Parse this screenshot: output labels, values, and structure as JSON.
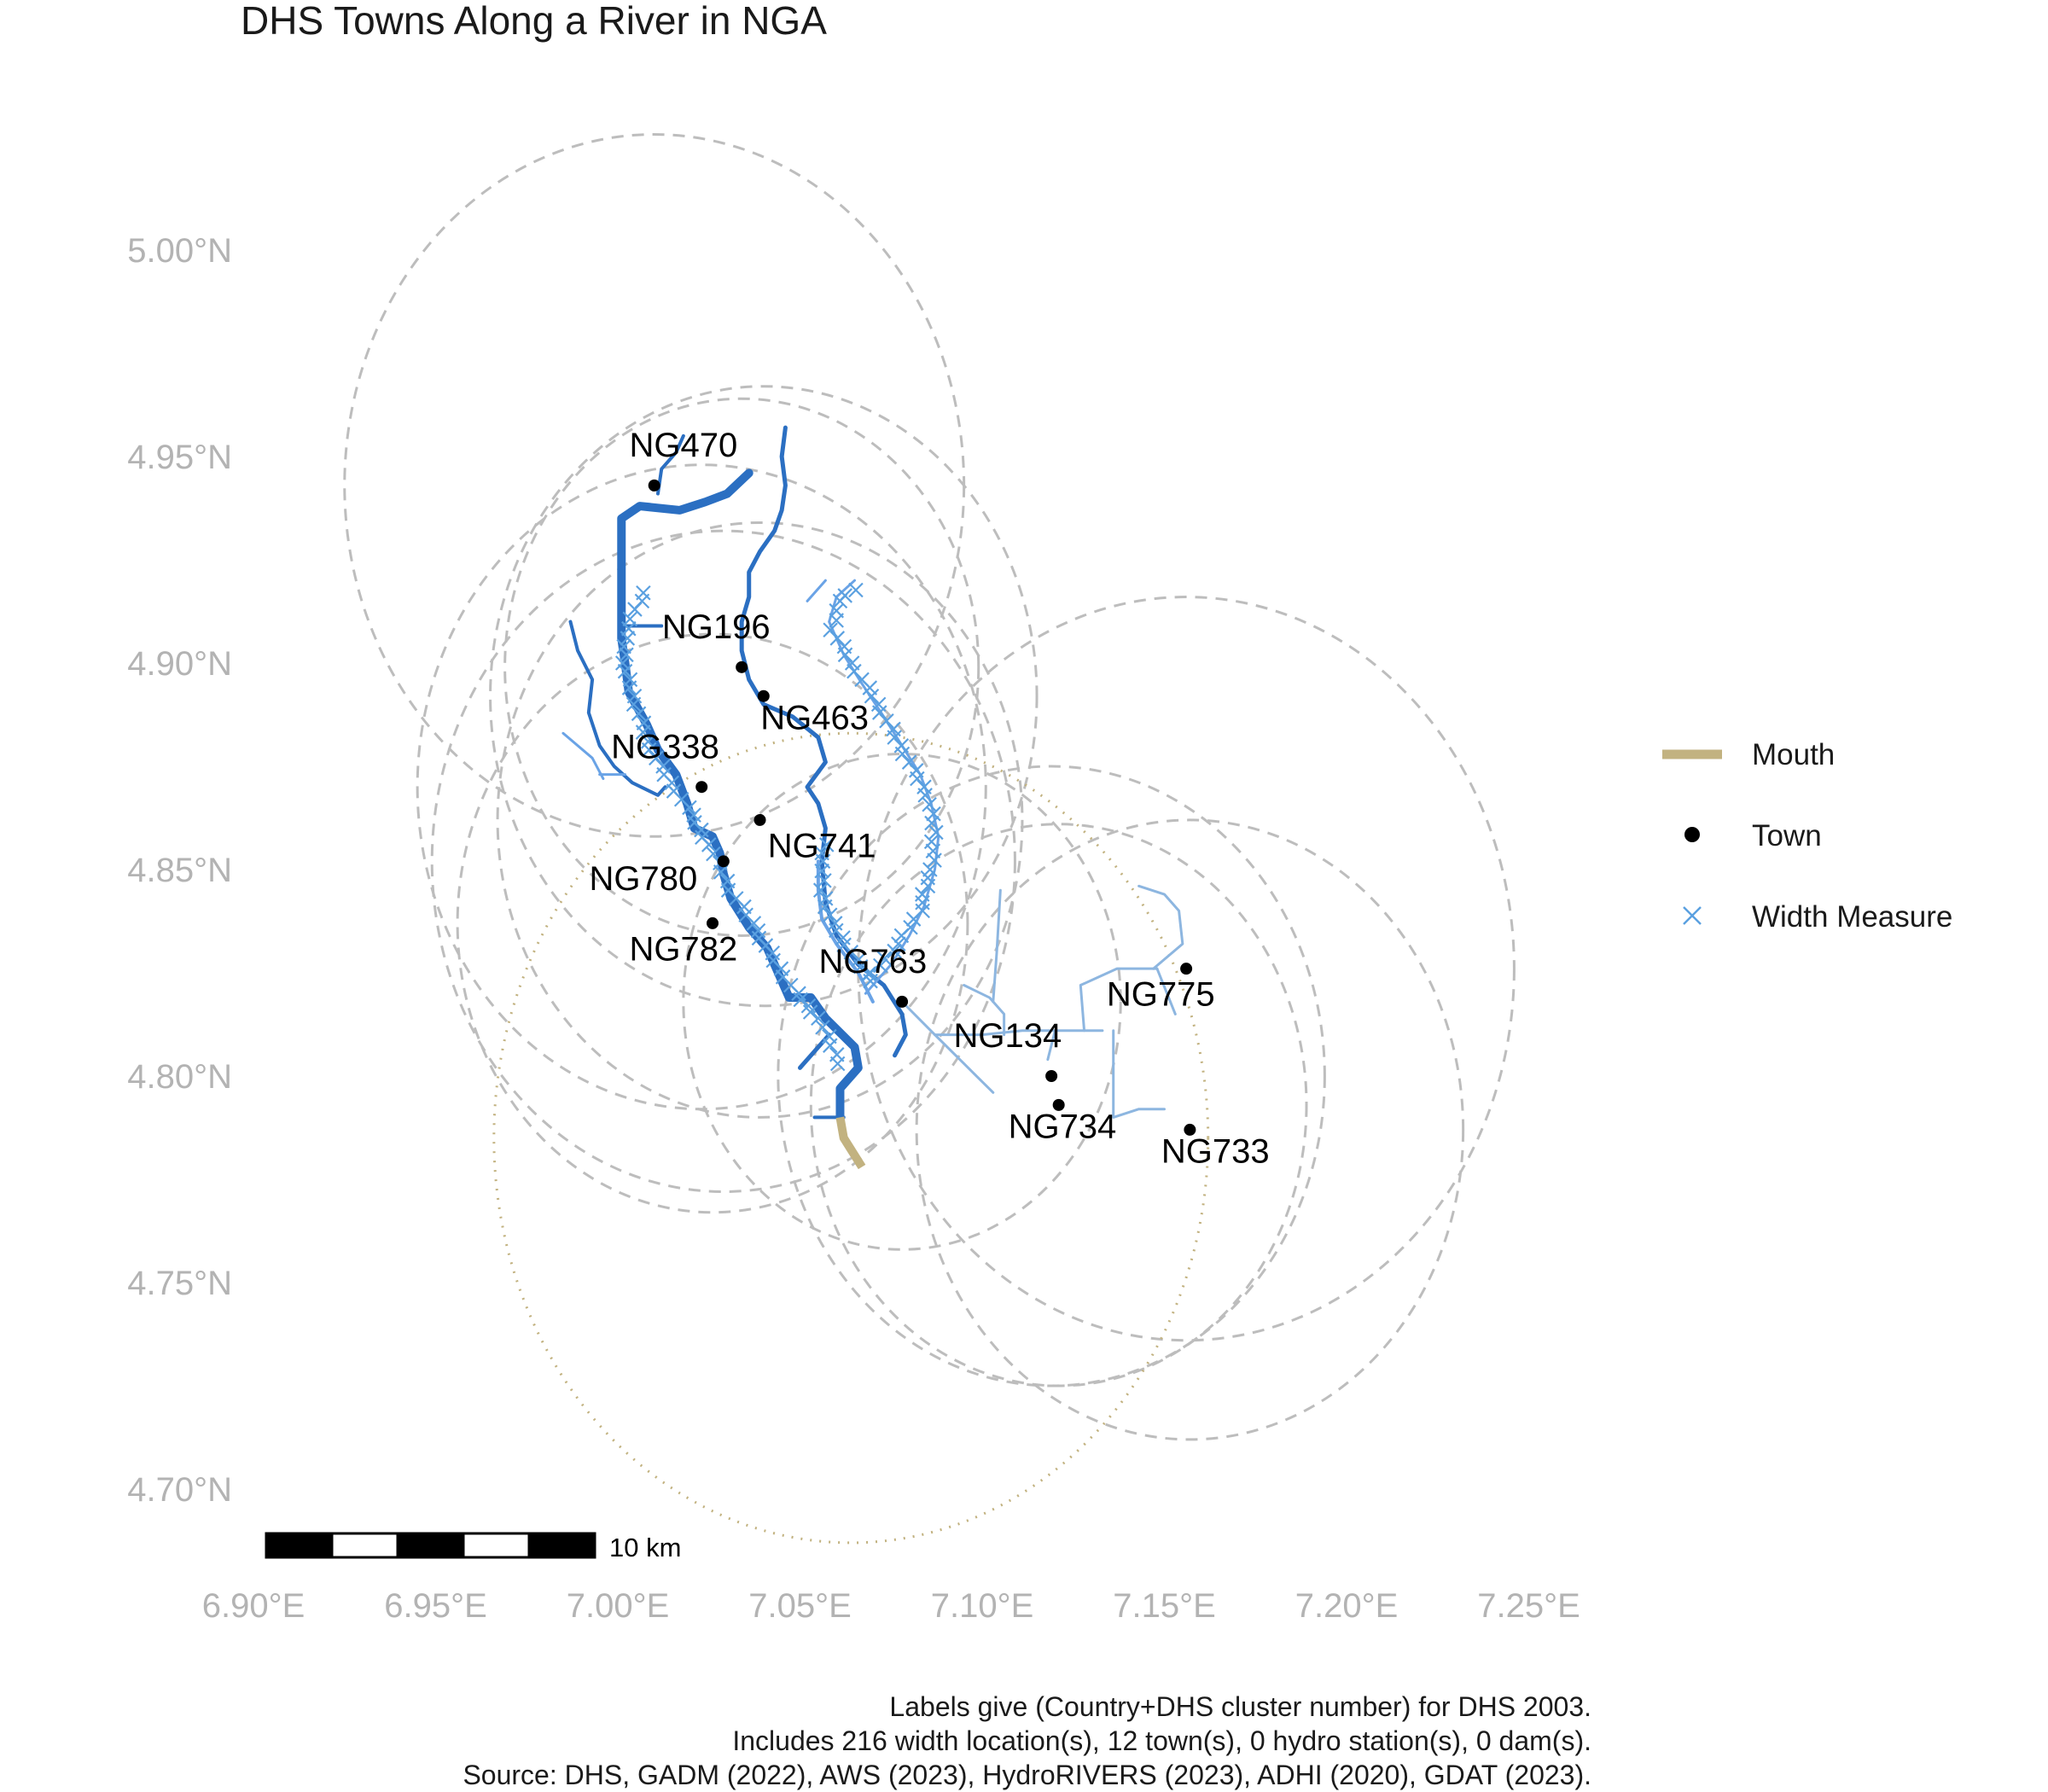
{
  "title": "DHS Towns Along a River in NGA",
  "colors": {
    "mouth": "#c2b280",
    "town": "#000000",
    "width_measure": "#5aa0e0",
    "river_main": "#2b6fc2",
    "river_light": "#6aa3e6",
    "river_pale": "#8db6e0",
    "buffer": "#bdbdbd",
    "tick": "#b3b3b3"
  },
  "chart_data": {
    "type": "map",
    "x_ticks": [
      {
        "value": 6.9,
        "label": "6.90°E"
      },
      {
        "value": 6.95,
        "label": "6.95°E"
      },
      {
        "value": 7.0,
        "label": "7.00°E"
      },
      {
        "value": 7.05,
        "label": "7.05°E"
      },
      {
        "value": 7.1,
        "label": "7.10°E"
      },
      {
        "value": 7.15,
        "label": "7.15°E"
      },
      {
        "value": 7.2,
        "label": "7.20°E"
      },
      {
        "value": 7.25,
        "label": "7.25°E"
      }
    ],
    "y_ticks": [
      {
        "value": 5.0,
        "label": "5.00°N"
      },
      {
        "value": 4.95,
        "label": "4.95°N"
      },
      {
        "value": 4.9,
        "label": "4.90°N"
      },
      {
        "value": 4.85,
        "label": "4.85°N"
      },
      {
        "value": 4.8,
        "label": "4.80°N"
      },
      {
        "value": 4.75,
        "label": "4.75°N"
      },
      {
        "value": 4.7,
        "label": "4.70°N"
      }
    ],
    "xlim": [
      6.9,
      7.25
    ],
    "ylim": [
      4.7,
      5.0
    ],
    "grid": false,
    "towns": [
      {
        "id": "NG470",
        "lon": 7.01,
        "lat": 4.943,
        "ldx": 0.008,
        "ldy": 0.007
      },
      {
        "id": "NG196",
        "lon": 7.034,
        "lat": 4.899,
        "ldx": -0.007,
        "ldy": 0.007
      },
      {
        "id": "NG463",
        "lon": 7.04,
        "lat": 4.892,
        "ldx": 0.014,
        "ldy": -0.008
      },
      {
        "id": "NG338",
        "lon": 7.023,
        "lat": 4.87,
        "ldx": -0.01,
        "ldy": 0.007
      },
      {
        "id": "NG741",
        "lon": 7.039,
        "lat": 4.862,
        "ldx": 0.017,
        "ldy": -0.009
      },
      {
        "id": "NG780",
        "lon": 7.029,
        "lat": 4.852,
        "ldx": -0.022,
        "ldy": -0.007
      },
      {
        "id": "NG782",
        "lon": 7.026,
        "lat": 4.837,
        "ldx": -0.008,
        "ldy": -0.009
      },
      {
        "id": "NG763",
        "lon": 7.078,
        "lat": 4.818,
        "ldx": -0.008,
        "ldy": 0.007
      },
      {
        "id": "NG775",
        "lon": 7.156,
        "lat": 4.826,
        "ldx": -0.007,
        "ldy": -0.009
      },
      {
        "id": "NG134",
        "lon": 7.119,
        "lat": 4.8,
        "ldx": -0.012,
        "ldy": 0.007
      },
      {
        "id": "NG734",
        "lon": 7.121,
        "lat": 4.793,
        "ldx": 0.001,
        "ldy": -0.008
      },
      {
        "id": "NG733",
        "lon": 7.157,
        "lat": 4.787,
        "ldx": 0.007,
        "ldy": -0.008
      }
    ],
    "mouth_line": [
      [
        7.061,
        4.79
      ],
      [
        7.062,
        4.785
      ],
      [
        7.067,
        4.778
      ]
    ],
    "rivers": [
      {
        "style": "main",
        "width": 10,
        "coords": [
          [
            7.061,
            4.79
          ],
          [
            7.061,
            4.797
          ],
          [
            7.066,
            4.802
          ],
          [
            7.065,
            4.807
          ],
          [
            7.057,
            4.814
          ],
          [
            7.053,
            4.819
          ],
          [
            7.047,
            4.819
          ],
          [
            7.044,
            4.825
          ],
          [
            7.041,
            4.831
          ],
          [
            7.036,
            4.836
          ],
          [
            7.031,
            4.843
          ],
          [
            7.029,
            4.849
          ],
          [
            7.028,
            4.854
          ],
          [
            7.026,
            4.858
          ],
          [
            7.021,
            4.86
          ],
          [
            7.019,
            4.866
          ],
          [
            7.016,
            4.873
          ],
          [
            7.011,
            4.879
          ],
          [
            7.008,
            4.885
          ],
          [
            7.003,
            4.893
          ],
          [
            7.002,
            4.9
          ],
          [
            7.001,
            4.906
          ],
          [
            7.001,
            4.913
          ],
          [
            7.001,
            4.92
          ],
          [
            7.001,
            4.927
          ],
          [
            7.001,
            4.935
          ],
          [
            7.006,
            4.938
          ],
          [
            7.017,
            4.937
          ],
          [
            7.024,
            4.939
          ],
          [
            7.03,
            4.941
          ],
          [
            7.036,
            4.946
          ]
        ]
      },
      {
        "style": "main",
        "width": 5,
        "coords": [
          [
            7.076,
            4.805
          ],
          [
            7.079,
            4.81
          ],
          [
            7.078,
            4.815
          ],
          [
            7.073,
            4.822
          ],
          [
            7.066,
            4.827
          ],
          [
            7.06,
            4.834
          ],
          [
            7.057,
            4.842
          ],
          [
            7.056,
            4.852
          ],
          [
            7.057,
            4.86
          ],
          [
            7.055,
            4.866
          ],
          [
            7.052,
            4.87
          ],
          [
            7.057,
            4.876
          ],
          [
            7.055,
            4.882
          ],
          [
            7.048,
            4.887
          ],
          [
            7.04,
            4.89
          ],
          [
            7.036,
            4.896
          ],
          [
            7.034,
            4.903
          ],
          [
            7.034,
            4.91
          ],
          [
            7.036,
            4.916
          ],
          [
            7.036,
            4.922
          ],
          [
            7.039,
            4.927
          ],
          [
            7.043,
            4.932
          ],
          [
            7.045,
            4.937
          ],
          [
            7.046,
            4.943
          ],
          [
            7.045,
            4.95
          ],
          [
            7.046,
            4.957
          ]
        ]
      },
      {
        "style": "main",
        "width": 4,
        "coords": [
          [
            6.987,
            4.91
          ],
          [
            6.989,
            4.903
          ],
          [
            6.993,
            4.896
          ],
          [
            6.992,
            4.888
          ],
          [
            6.995,
            4.88
          ],
          [
            6.999,
            4.875
          ],
          [
            7.004,
            4.871
          ],
          [
            7.011,
            4.868
          ],
          [
            7.013,
            4.87
          ]
        ]
      },
      {
        "style": "main",
        "width": 4,
        "coords": [
          [
            7.011,
            4.941
          ],
          [
            7.012,
            4.947
          ],
          [
            7.016,
            4.951
          ],
          [
            7.018,
            4.955
          ]
        ]
      },
      {
        "style": "main",
        "width": 4,
        "coords": [
          [
            7.002,
            4.909
          ],
          [
            7.012,
            4.909
          ]
        ]
      },
      {
        "style": "main",
        "width": 5,
        "coords": [
          [
            7.05,
            4.802
          ],
          [
            7.058,
            4.81
          ]
        ]
      },
      {
        "style": "main",
        "width": 4,
        "coords": [
          [
            7.054,
            4.79
          ],
          [
            7.062,
            4.79
          ]
        ]
      },
      {
        "style": "light",
        "width": 4,
        "coords": [
          [
            7.07,
            4.818
          ],
          [
            7.066,
            4.825
          ],
          [
            7.06,
            4.832
          ],
          [
            7.056,
            4.838
          ],
          [
            7.055,
            4.845
          ],
          [
            7.055,
            4.852
          ]
        ]
      },
      {
        "style": "light",
        "width": 3,
        "coords": [
          [
            6.985,
            4.883
          ],
          [
            6.993,
            4.877
          ],
          [
            6.996,
            4.872
          ]
        ]
      },
      {
        "style": "light",
        "width": 3,
        "coords": [
          [
            6.995,
            4.873
          ],
          [
            7.002,
            4.873
          ]
        ]
      },
      {
        "style": "light",
        "width": 3,
        "coords": [
          [
            7.068,
            4.82
          ],
          [
            7.075,
            4.827
          ],
          [
            7.08,
            4.834
          ],
          [
            7.084,
            4.841
          ],
          [
            7.087,
            4.85
          ],
          [
            7.088,
            4.858
          ],
          [
            7.086,
            4.866
          ],
          [
            7.083,
            4.873
          ],
          [
            7.078,
            4.88
          ],
          [
            7.073,
            4.887
          ],
          [
            7.067,
            4.895
          ],
          [
            7.062,
            4.902
          ],
          [
            7.058,
            4.91
          ],
          [
            7.06,
            4.916
          ],
          [
            7.065,
            4.92
          ]
        ]
      },
      {
        "style": "light",
        "width": 3,
        "coords": [
          [
            7.052,
            4.915
          ],
          [
            7.057,
            4.92
          ]
        ]
      },
      {
        "style": "pale",
        "width": 3,
        "coords": [
          [
            7.078,
            4.818
          ],
          [
            7.087,
            4.81
          ],
          [
            7.095,
            4.803
          ],
          [
            7.103,
            4.796
          ]
        ]
      },
      {
        "style": "pale",
        "width": 3,
        "coords": [
          [
            7.087,
            4.81
          ],
          [
            7.1,
            4.81
          ],
          [
            7.111,
            4.811
          ],
          [
            7.122,
            4.811
          ],
          [
            7.133,
            4.811
          ]
        ]
      },
      {
        "style": "pale",
        "width": 3,
        "coords": [
          [
            7.095,
            4.822
          ],
          [
            7.102,
            4.819
          ],
          [
            7.106,
            4.815
          ],
          [
            7.106,
            4.81
          ]
        ]
      },
      {
        "style": "pale",
        "width": 3,
        "coords": [
          [
            7.103,
            4.818
          ],
          [
            7.104,
            4.83
          ],
          [
            7.105,
            4.845
          ]
        ]
      },
      {
        "style": "pale",
        "width": 3,
        "coords": [
          [
            7.128,
            4.811
          ],
          [
            7.127,
            4.822
          ],
          [
            7.137,
            4.826
          ],
          [
            7.148,
            4.826
          ]
        ]
      },
      {
        "style": "pale",
        "width": 3,
        "coords": [
          [
            7.136,
            4.811
          ],
          [
            7.136,
            4.8
          ],
          [
            7.136,
            4.79
          ],
          [
            7.143,
            4.792
          ],
          [
            7.15,
            4.792
          ]
        ]
      },
      {
        "style": "pale",
        "width": 3,
        "coords": [
          [
            7.147,
            4.826
          ],
          [
            7.155,
            4.832
          ],
          [
            7.154,
            4.84
          ],
          [
            7.15,
            4.844
          ],
          [
            7.143,
            4.846
          ]
        ]
      },
      {
        "style": "pale",
        "width": 3,
        "coords": [
          [
            7.148,
            4.826
          ],
          [
            7.153,
            4.815
          ]
        ]
      },
      {
        "style": "pale",
        "width": 3,
        "coords": [
          [
            7.12,
            4.811
          ],
          [
            7.118,
            4.804
          ]
        ]
      }
    ],
    "width_paths": [
      [
        [
          7.061,
          4.803
        ],
        [
          7.055,
          4.814
        ],
        [
          7.049,
          4.82
        ],
        [
          7.043,
          4.828
        ],
        [
          7.037,
          4.837
        ],
        [
          7.031,
          4.845
        ],
        [
          7.025,
          4.856
        ],
        [
          7.019,
          4.865
        ],
        [
          7.013,
          4.873
        ],
        [
          7.008,
          4.881
        ],
        [
          7.005,
          4.89
        ],
        [
          7.002,
          4.898
        ],
        [
          7.002,
          4.906
        ],
        [
          7.005,
          4.913
        ],
        [
          7.008,
          4.919
        ]
      ],
      [
        [
          7.07,
          4.823
        ],
        [
          7.064,
          4.83
        ],
        [
          7.059,
          4.837
        ],
        [
          7.056,
          4.845
        ],
        [
          7.056,
          4.852
        ],
        [
          7.057,
          4.858
        ]
      ],
      [
        [
          7.07,
          4.825
        ],
        [
          7.077,
          4.832
        ],
        [
          7.083,
          4.84
        ],
        [
          7.086,
          4.85
        ],
        [
          7.087,
          4.859
        ],
        [
          7.085,
          4.868
        ],
        [
          7.08,
          4.876
        ],
        [
          7.075,
          4.884
        ],
        [
          7.07,
          4.892
        ],
        [
          7.064,
          4.9
        ],
        [
          7.059,
          4.908
        ],
        [
          7.061,
          4.915
        ],
        [
          7.067,
          4.919
        ]
      ]
    ],
    "buffers": [
      {
        "lon": 7.01,
        "lat": 4.943,
        "r": 0.085
      },
      {
        "lon": 7.034,
        "lat": 4.899,
        "r": 0.065
      },
      {
        "lon": 7.04,
        "lat": 4.892,
        "r": 0.075
      },
      {
        "lon": 7.023,
        "lat": 4.87,
        "r": 0.078
      },
      {
        "lon": 7.039,
        "lat": 4.862,
        "r": 0.072
      },
      {
        "lon": 7.029,
        "lat": 4.852,
        "r": 0.08
      },
      {
        "lon": 7.026,
        "lat": 4.837,
        "r": 0.07
      },
      {
        "lon": 7.078,
        "lat": 4.818,
        "r": 0.06
      },
      {
        "lon": 7.156,
        "lat": 4.826,
        "r": 0.09
      },
      {
        "lon": 7.119,
        "lat": 4.8,
        "r": 0.075
      },
      {
        "lon": 7.121,
        "lat": 4.793,
        "r": 0.068
      },
      {
        "lon": 7.157,
        "lat": 4.787,
        "r": 0.075
      }
    ],
    "mouth_buffer": {
      "lon": 7.064,
      "lat": 4.785,
      "r": 0.098
    },
    "legend": {
      "position": "right",
      "entries": [
        {
          "key": "mouth",
          "label": "Mouth"
        },
        {
          "key": "town",
          "label": "Town"
        },
        {
          "key": "width",
          "label": "Width Measure"
        }
      ]
    },
    "scale_bar": {
      "label": "10 km",
      "km": 10,
      "segments": 5
    }
  },
  "caption": [
    "Labels give (Country+DHS cluster number) for DHS 2003.",
    "Includes 216 width location(s), 12 town(s), 0 hydro station(s), 0 dam(s).",
    "Source: DHS, GADM (2022), AWS (2023), HydroRIVERS (2023), ADHI (2020), GDAT (2023)."
  ]
}
